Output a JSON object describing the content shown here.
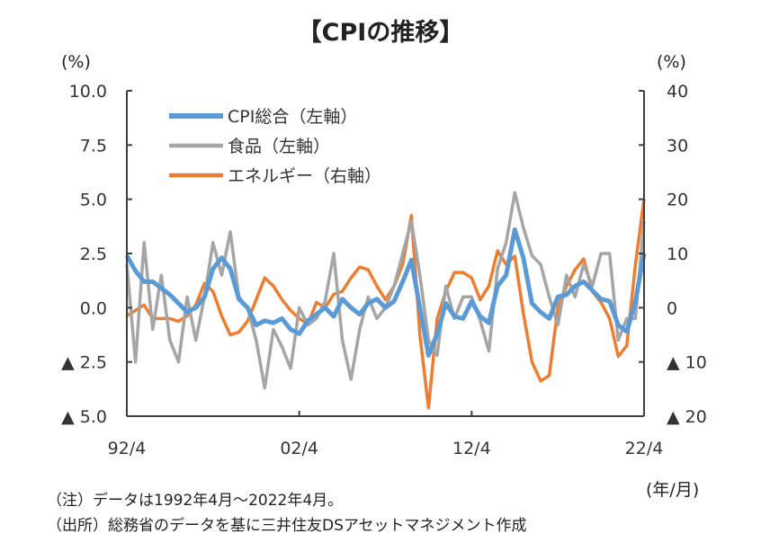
{
  "chart_data": {
    "type": "line",
    "title": "【CPIの推移】",
    "ylabel_left": "(%)",
    "ylabel_right": "(%)",
    "xlabel": "(年/月)",
    "x_range": [
      1992.25,
      2022.25
    ],
    "ylim_left": [
      -5,
      10
    ],
    "ylim_right": [
      -20,
      40
    ],
    "x_ticks": [
      {
        "value": 1992.25,
        "label": "92/4"
      },
      {
        "value": 2002.25,
        "label": "02/4"
      },
      {
        "value": 2012.25,
        "label": "12/4"
      },
      {
        "value": 2022.25,
        "label": "22/4"
      }
    ],
    "left_ticks": [
      {
        "value": 10,
        "label": "10.0"
      },
      {
        "value": 7.5,
        "label": "7.5"
      },
      {
        "value": 5,
        "label": "5.0"
      },
      {
        "value": 2.5,
        "label": "2.5"
      },
      {
        "value": 0,
        "label": "0.0"
      },
      {
        "value": -2.5,
        "label": "▲ 2.5"
      },
      {
        "value": -5,
        "label": "▲ 5.0"
      }
    ],
    "right_ticks": [
      {
        "value": 40,
        "label": "40"
      },
      {
        "value": 30,
        "label": "30"
      },
      {
        "value": 20,
        "label": "20"
      },
      {
        "value": 10,
        "label": "10"
      },
      {
        "value": 0,
        "label": "0"
      },
      {
        "value": -10,
        "label": "▲ 10"
      },
      {
        "value": -20,
        "label": "▲ 20"
      }
    ],
    "x_start": 1992.25,
    "x_step": 0.5,
    "legend_placement": "top-left",
    "series": [
      {
        "name": "CPI総合（左軸）",
        "axis": "left",
        "color": "#5b9bd5",
        "width": 5,
        "values": [
          2.4,
          1.7,
          1.2,
          1.2,
          0.9,
          0.6,
          0.2,
          -0.2,
          0.0,
          0.5,
          1.8,
          2.3,
          1.8,
          0.4,
          0.0,
          -0.8,
          -0.6,
          -0.7,
          -0.5,
          -1.0,
          -1.2,
          -0.6,
          -0.3,
          0.0,
          -0.4,
          0.4,
          0.0,
          -0.3,
          0.2,
          0.4,
          0.0,
          0.3,
          1.2,
          2.2,
          0.0,
          -2.2,
          -1.2,
          0.2,
          -0.4,
          -0.5,
          0.3,
          -0.4,
          -0.7,
          1.0,
          1.5,
          3.6,
          2.3,
          0.2,
          -0.2,
          -0.5,
          0.5,
          0.6,
          1.0,
          1.2,
          0.8,
          0.4,
          0.3,
          -0.8,
          -1.1,
          0.3,
          2.5
        ]
      },
      {
        "name": "食品（左軸）",
        "axis": "left",
        "color": "#a5a5a5",
        "width": 3.5,
        "values": [
          2.0,
          -2.5,
          3.0,
          -1.0,
          1.5,
          -1.5,
          -2.5,
          0.5,
          -1.5,
          0.5,
          3.0,
          1.5,
          3.5,
          0.5,
          0.0,
          -1.5,
          -3.7,
          -1.0,
          -1.8,
          -2.8,
          0.0,
          -0.8,
          -0.5,
          0.3,
          2.5,
          -1.5,
          -3.3,
          -1.0,
          0.5,
          -0.5,
          0.0,
          1.0,
          2.5,
          4.0,
          1.5,
          -1.5,
          -2.2,
          1.0,
          -0.5,
          0.5,
          0.5,
          -0.6,
          -2.0,
          1.8,
          3.0,
          5.3,
          3.7,
          2.4,
          2.0,
          0.5,
          -0.8,
          1.5,
          0.5,
          2.0,
          1.0,
          2.5,
          2.5,
          -1.5,
          -0.5,
          -0.5,
          4.0
        ]
      },
      {
        "name": "エネルギー（右軸）",
        "axis": "right",
        "color": "#ed7d31",
        "width": 3.5,
        "values": [
          -1.5,
          -0.5,
          0.5,
          -2.0,
          -2.0,
          -2.0,
          -2.5,
          -1.5,
          0.5,
          4.5,
          3.0,
          -1.5,
          -5.0,
          -4.5,
          -2.5,
          1.5,
          5.5,
          4.0,
          1.5,
          -0.5,
          -2.0,
          -3.0,
          1.0,
          0.0,
          2.5,
          3.0,
          5.5,
          7.5,
          7.0,
          4.0,
          1.5,
          4.0,
          8.0,
          17.0,
          -5.0,
          -18.5,
          -2.0,
          3.0,
          6.5,
          6.5,
          5.5,
          1.5,
          4.0,
          10.5,
          8.0,
          9.5,
          -1.0,
          -10.0,
          -13.5,
          -12.5,
          0.0,
          4.0,
          7.0,
          9.0,
          3.0,
          1.0,
          -2.0,
          -9.0,
          -7.0,
          8.0,
          20.0
        ]
      }
    ]
  },
  "notes": {
    "note1": "（注）データは1992年4月～2022年4月。",
    "note2": "（出所）総務省のデータを基に三井住友DSアセットマネジメント作成"
  }
}
